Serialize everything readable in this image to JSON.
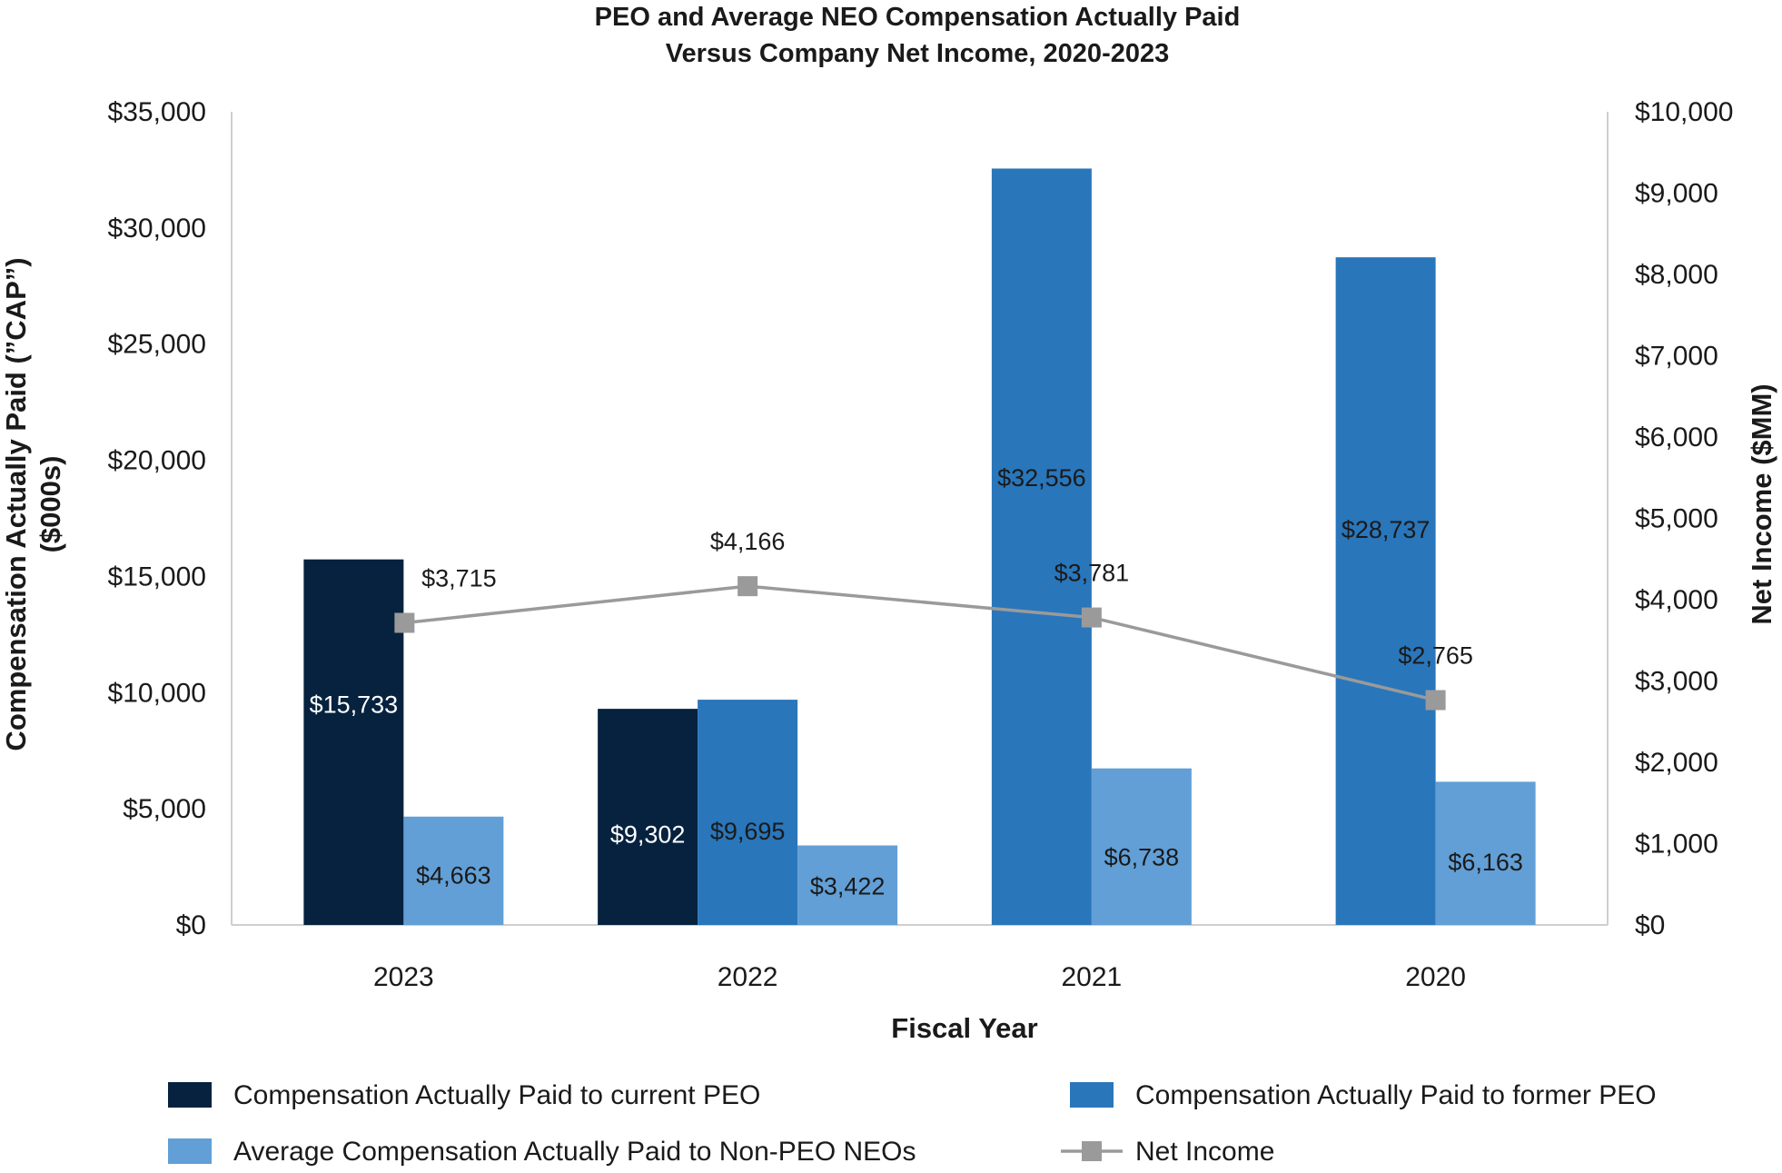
{
  "chart_data": {
    "type": "bar",
    "title_lines": [
      "PEO and Average NEO Compensation Actually Paid",
      "Versus Company Net Income, 2020-2023"
    ],
    "xlabel": "Fiscal Year",
    "ylabel_lines": [
      "Compensation Actually Paid (”CAP”)",
      "($000s)"
    ],
    "y2label": "Net Income ($MM)",
    "categories": [
      "2023",
      "2022",
      "2021",
      "2020"
    ],
    "ylim": [
      0,
      35000
    ],
    "y_ticks": [
      0,
      5000,
      10000,
      15000,
      20000,
      25000,
      30000,
      35000
    ],
    "y_tick_labels": [
      "$0",
      "$5,000",
      "$10,000",
      "$15,000",
      "$20,000",
      "$25,000",
      "$30,000",
      "$35,000"
    ],
    "y2lim": [
      0,
      10000
    ],
    "y2_ticks": [
      0,
      1000,
      2000,
      3000,
      4000,
      5000,
      6000,
      7000,
      8000,
      9000,
      10000
    ],
    "y2_tick_labels": [
      "$0",
      "$1,000",
      "$2,000",
      "$3,000",
      "$4,000",
      "$5,000",
      "$6,000",
      "$7,000",
      "$8,000",
      "$9,000",
      "$10,000"
    ],
    "grid": false,
    "legend_position": "bottom",
    "bar_series": [
      {
        "name": "Compensation Actually Paid to current PEO",
        "color": "#06223f",
        "label_color": "#ffffff",
        "values": [
          15733,
          9302,
          null,
          null
        ],
        "labels": [
          "$15,733",
          "$9,302",
          null,
          null
        ]
      },
      {
        "name": "Compensation Actually Paid to former PEO",
        "color": "#2976bb",
        "label_color": "#1a1a1a",
        "values": [
          null,
          9695,
          32556,
          28737
        ],
        "labels": [
          null,
          "$9,695",
          "$32,556",
          "$28,737"
        ]
      },
      {
        "name": "Average Compensation Actually Paid to Non-PEO NEOs",
        "color": "#629fd6",
        "label_color": "#1a1a1a",
        "values": [
          4663,
          3422,
          6738,
          6163
        ],
        "labels": [
          "$4,663",
          "$3,422",
          "$6,738",
          "$6,163"
        ]
      }
    ],
    "line_series": [
      {
        "name": "Net Income",
        "color": "#9a9a9a",
        "axis": "right",
        "values": [
          3715,
          4166,
          3781,
          2765
        ],
        "labels": [
          "$3,715",
          "$4,166",
          "$3,781",
          "$2,765"
        ]
      }
    ],
    "legend": [
      {
        "label": "Compensation Actually Paid to current PEO",
        "kind": "bar",
        "color": "#06223f"
      },
      {
        "label": "Compensation Actually Paid to former PEO",
        "kind": "bar",
        "color": "#2976bb"
      },
      {
        "label": "Average Compensation Actually Paid to Non-PEO NEOs",
        "kind": "bar",
        "color": "#629fd6"
      },
      {
        "label": "Net Income",
        "kind": "line",
        "color": "#9a9a9a"
      }
    ]
  }
}
